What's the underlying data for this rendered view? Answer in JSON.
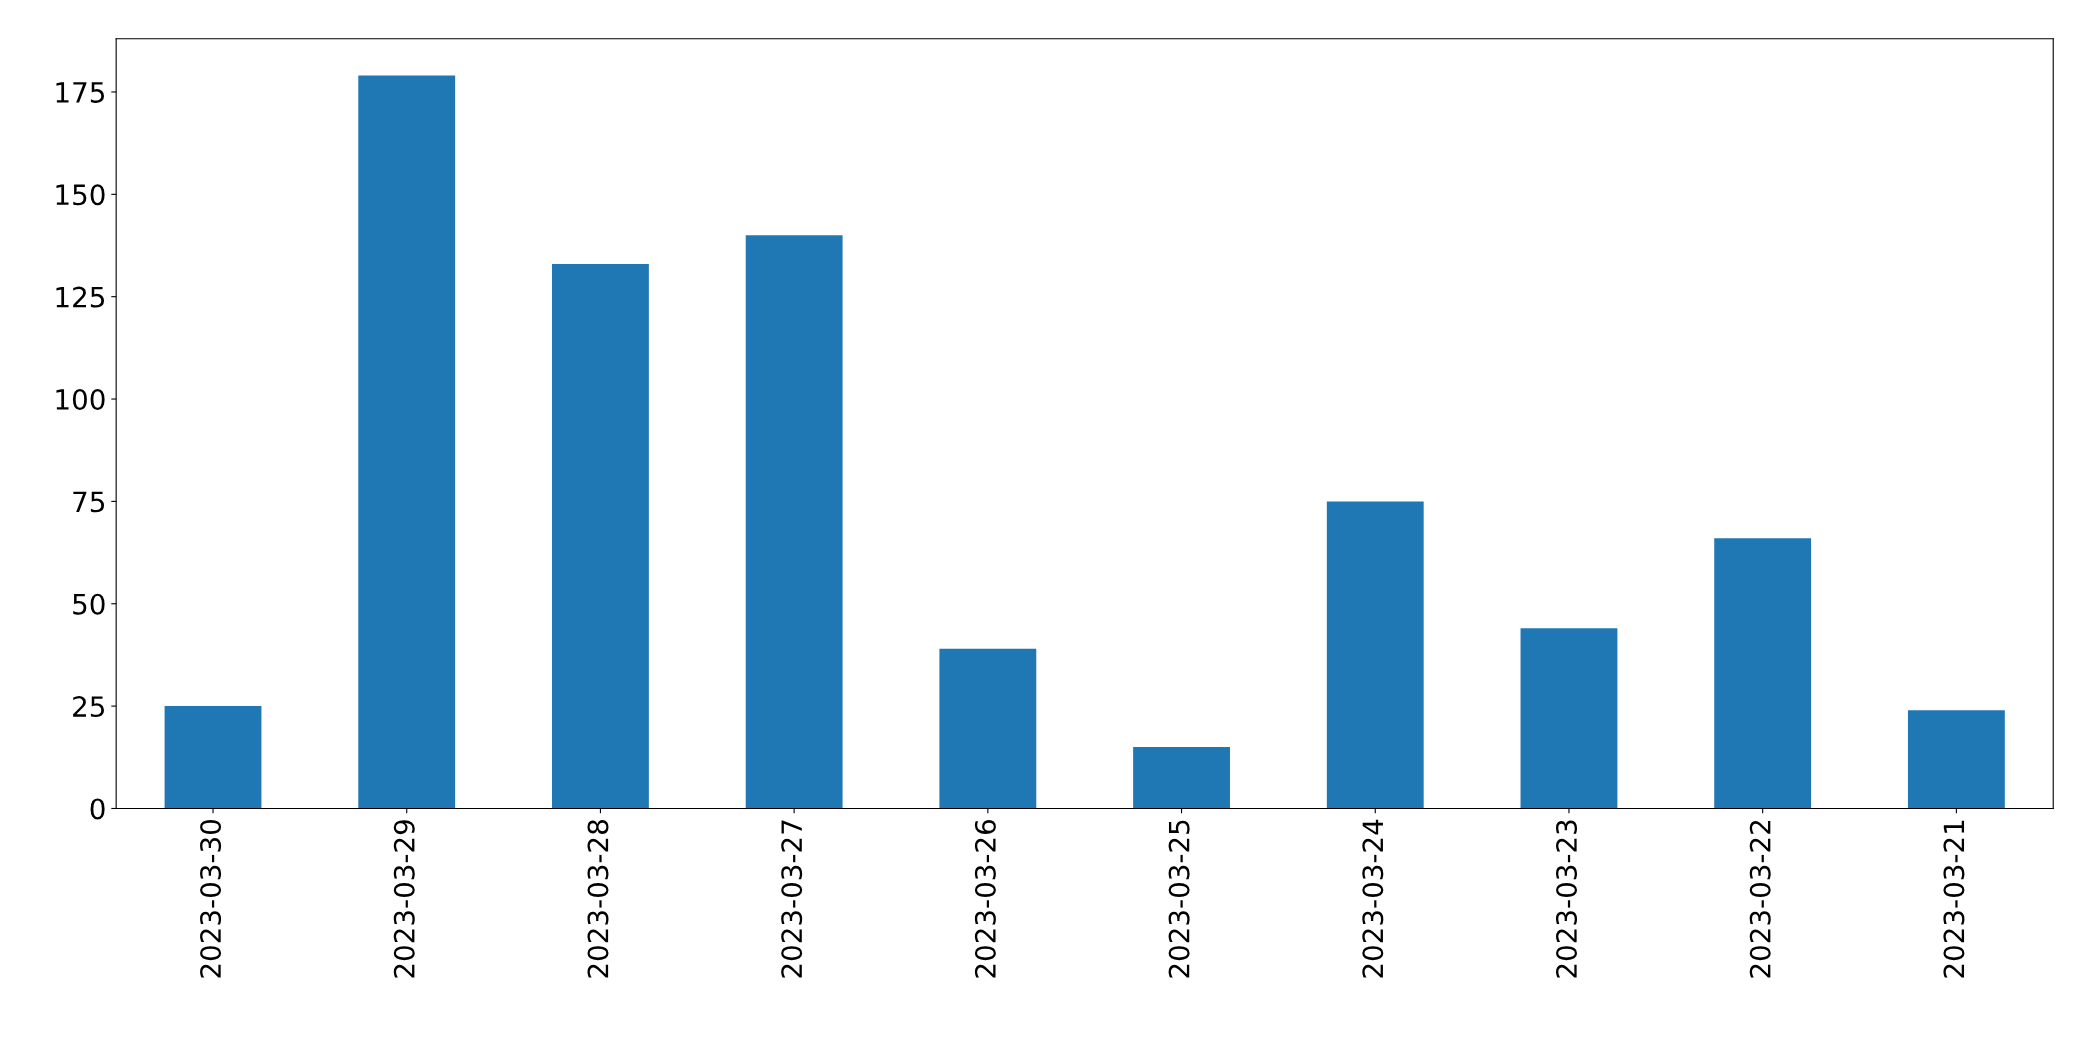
{
  "chart_data": {
    "type": "bar",
    "categories": [
      "2023-03-30",
      "2023-03-29",
      "2023-03-28",
      "2023-03-27",
      "2023-03-26",
      "2023-03-25",
      "2023-03-24",
      "2023-03-23",
      "2023-03-22",
      "2023-03-21"
    ],
    "values": [
      25,
      179,
      133,
      140,
      39,
      15,
      75,
      44,
      66,
      24
    ],
    "color": "#1f77b4",
    "ylim": [
      0,
      188
    ],
    "yticks": [
      0,
      25,
      50,
      75,
      100,
      125,
      150,
      175
    ],
    "grid": false,
    "legend": false
  }
}
